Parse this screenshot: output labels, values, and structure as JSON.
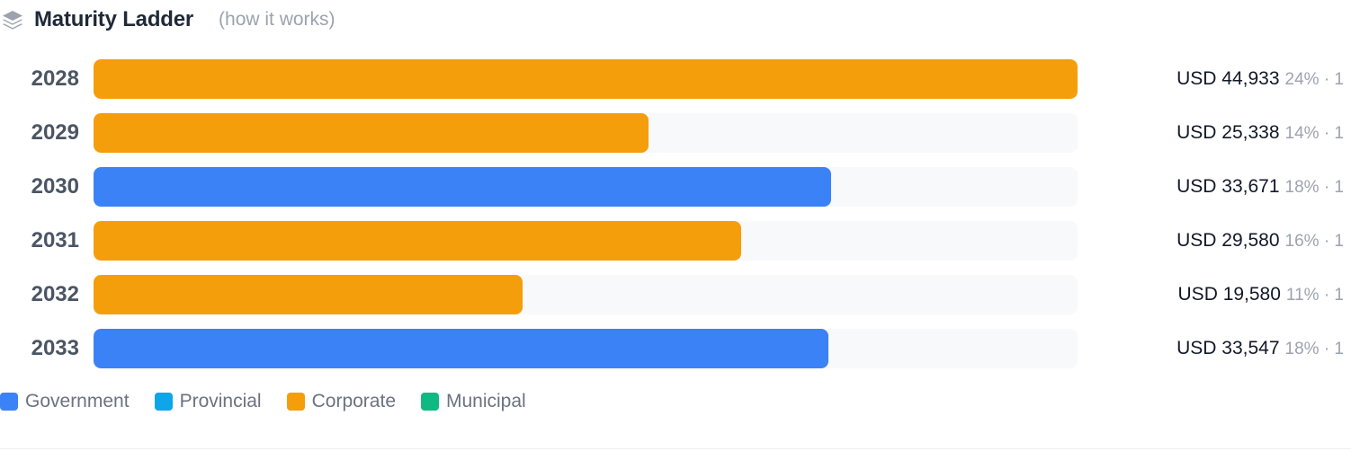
{
  "header": {
    "title": "Maturity Ladder",
    "how_link": "(how it works)",
    "icon": "layers-icon"
  },
  "colors": {
    "Government": "#3b82f6",
    "Provincial": "#0ea5e9",
    "Corporate": "#f59e0b",
    "Municipal": "#10b981"
  },
  "chart_data": {
    "type": "bar",
    "orientation": "horizontal",
    "categories": [
      "2028",
      "2029",
      "2030",
      "2031",
      "2032",
      "2033"
    ],
    "values": [
      44933,
      25338,
      33671,
      29580,
      19580,
      33547
    ],
    "labels": [
      "USD 44,933",
      "USD 25,338",
      "USD 33,671",
      "USD 29,580",
      "USD 19,580",
      "USD 33,547"
    ],
    "percents": [
      "24%",
      "14%",
      "18%",
      "16%",
      "11%",
      "18%"
    ],
    "counts": [
      "· 1",
      "· 1",
      "· 1",
      "· 1",
      "· 1",
      "· 1"
    ],
    "sectors": [
      "Corporate",
      "Corporate",
      "Government",
      "Corporate",
      "Corporate",
      "Government"
    ],
    "xlim": [
      0,
      44933
    ],
    "legend": [
      "Government",
      "Provincial",
      "Corporate",
      "Municipal"
    ],
    "legend_position": "bottom-left",
    "grid": false
  }
}
